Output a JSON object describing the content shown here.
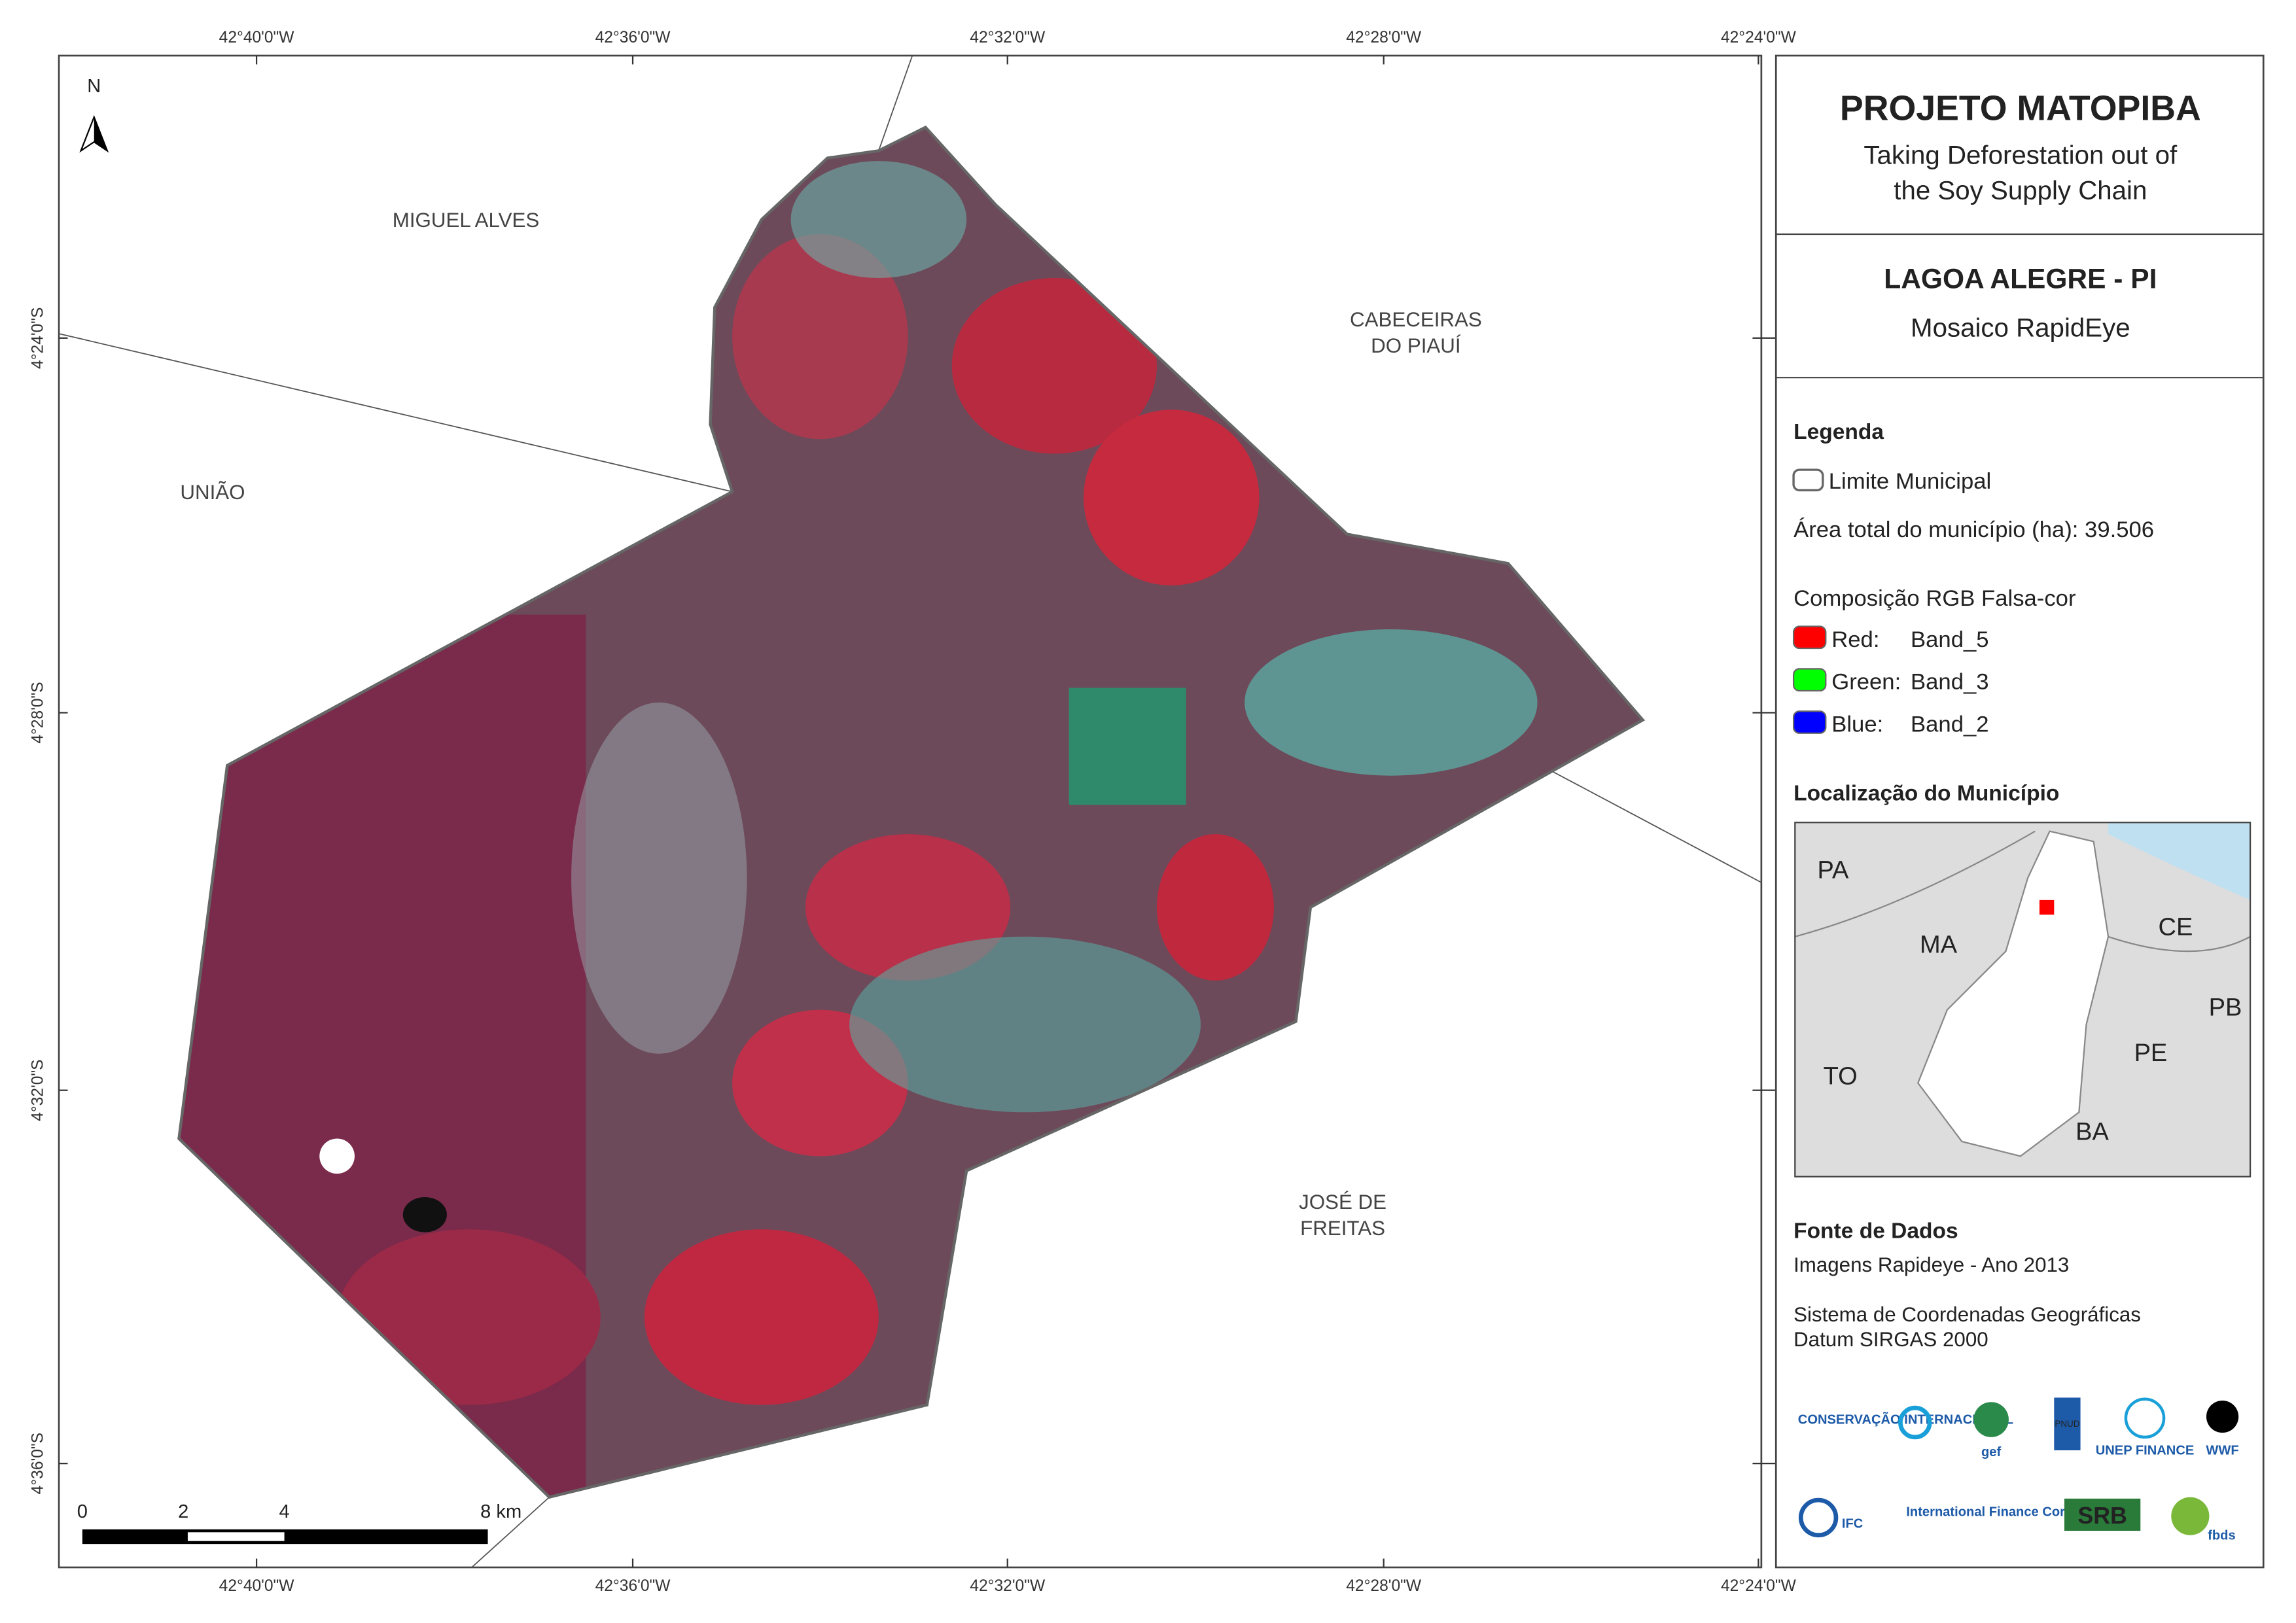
{
  "map": {
    "lon_labels": [
      "42°40'0\"W",
      "42°36'0\"W",
      "42°32'0\"W",
      "42°28'0\"W",
      "42°24'0\"W"
    ],
    "lat_labels": [
      "4°24'0\"S",
      "4°28'0\"S",
      "4°32'0\"S",
      "4°36'0\"S"
    ],
    "north": "N",
    "places": [
      "MIGUEL ALVES",
      "CABECEIRAS",
      "DO PIAUÍ",
      "UNIÃO",
      "JOSÉ DE",
      "FREITAS"
    ],
    "scale_labels": [
      "0",
      "2",
      "4",
      "8 km"
    ]
  },
  "panel": {
    "title": "PROJETO MATOPIBA",
    "subtitle": [
      "Taking Deforestation out of",
      "the Soy Supply Chain"
    ],
    "municipality": "LAGOA ALEGRE - PI",
    "mosaic": "Mosaico RapidEye",
    "legend": {
      "title": "Legenda",
      "boundary": "Limite Municipal",
      "area": "Área total do município (ha): 39.506",
      "composition": "Composição RGB Falsa-cor",
      "bands": [
        [
          "Red:",
          "Band_5"
        ],
        [
          "Green: ",
          "Band_3"
        ],
        [
          "Blue:",
          "Band_2"
        ]
      ]
    },
    "location": {
      "title": "Localização do Município",
      "states": [
        "PA",
        "MA",
        "CE",
        "PB",
        "TO",
        "PE",
        "BA"
      ]
    },
    "source": {
      "title": "Fonte de Dados",
      "lines": [
        "Imagens Rapideye - Ano 2013",
        "Sistema de Coordenadas Geográficas",
        "Datum SIRGAS 2000"
      ]
    },
    "logos": [
      "CONSERVAÇÃO INTERNACIONAL",
      "gef",
      "PNUD",
      "UNEP FINANCE",
      "WWF",
      "IFC",
      "International Finance Corporation",
      "SRB",
      "fbds"
    ]
  }
}
